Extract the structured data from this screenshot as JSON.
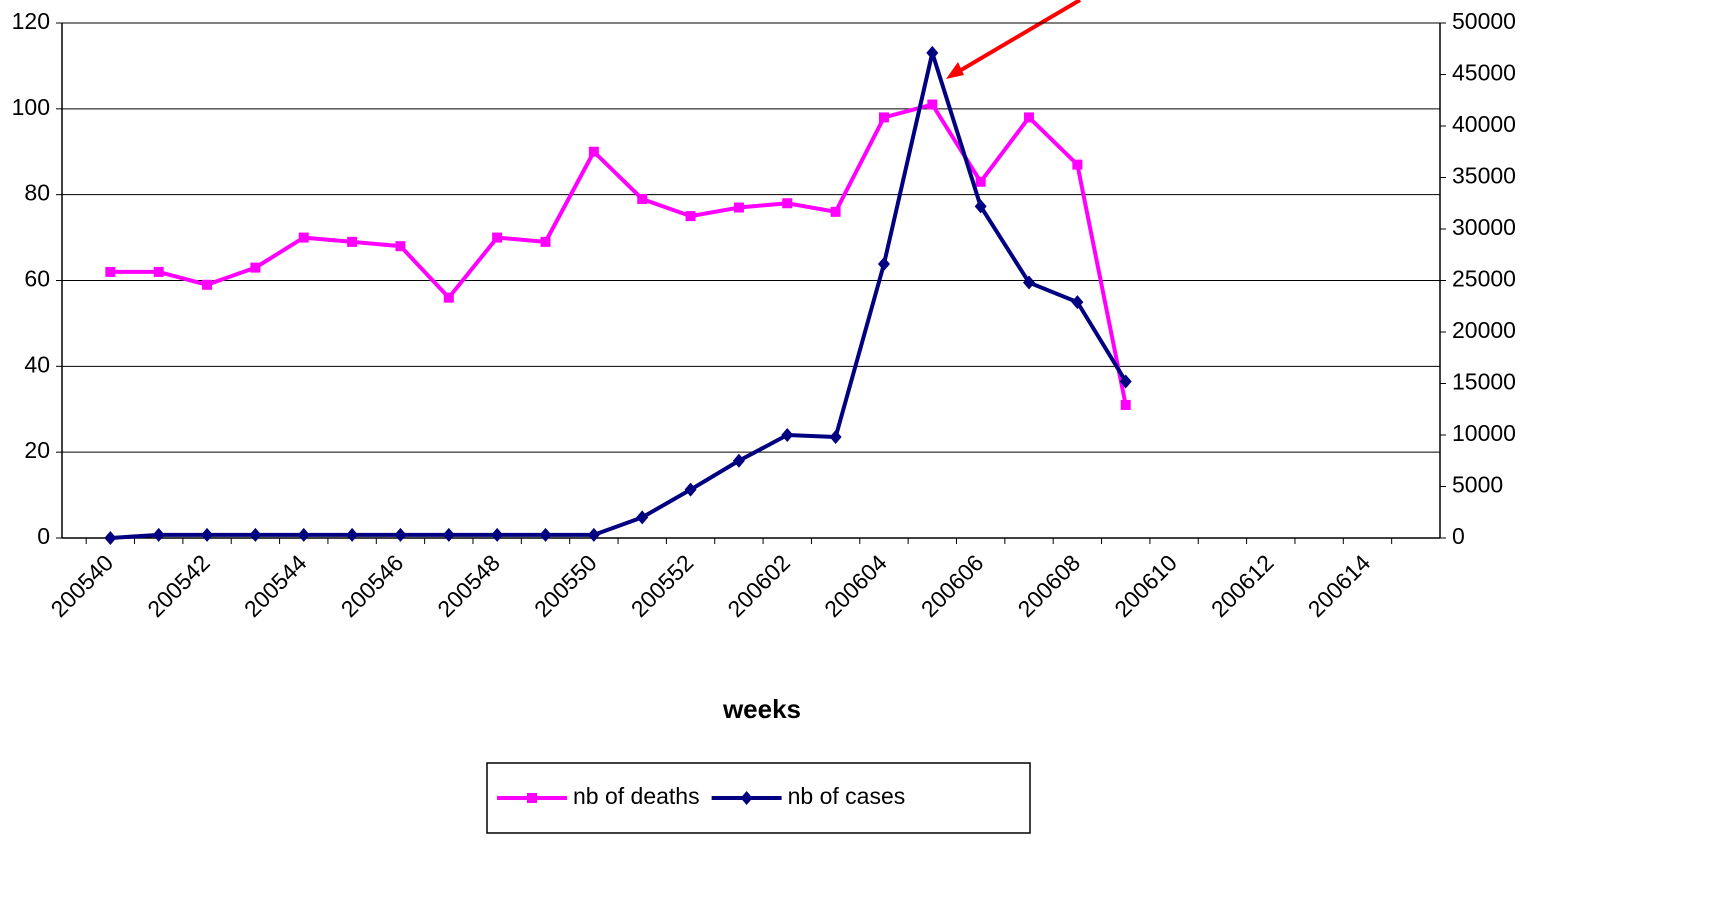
{
  "chart_data": {
    "type": "line",
    "x_label": "weeks",
    "categories": [
      "200540",
      null,
      "200542",
      null,
      "200544",
      null,
      "200546",
      null,
      "200548",
      null,
      "200550",
      null,
      "200552",
      null,
      "200602",
      null,
      "200604",
      null,
      "200606",
      null,
      "200608",
      null,
      "200610",
      null,
      "200612",
      null,
      "200614",
      null
    ],
    "series": [
      {
        "name": "nb of deaths",
        "color": "#ff00ff",
        "marker": "square",
        "values": [
          62,
          62,
          59,
          63,
          70,
          69,
          68,
          56,
          70,
          69,
          90,
          79,
          75,
          77,
          78,
          76,
          98,
          101,
          83,
          98,
          87,
          31,
          null,
          null,
          null,
          null,
          null,
          null
        ]
      },
      {
        "name": "nb of cases",
        "color": "#000080",
        "marker": "diamond",
        "axis": "y2",
        "values": [
          0,
          300,
          300,
          300,
          300,
          300,
          300,
          300,
          300,
          300,
          300,
          2000,
          4700,
          7500,
          10000,
          9800,
          26600,
          47100,
          32200,
          24800,
          22900,
          15200,
          null,
          null,
          null,
          null,
          null,
          null
        ]
      }
    ],
    "ylim": [
      0,
      120
    ],
    "yticks": [
      0,
      20,
      40,
      60,
      80,
      100,
      120
    ],
    "y2lim": [
      0,
      50000
    ],
    "y2ticks": [
      0,
      5000,
      10000,
      15000,
      20000,
      25000,
      30000,
      35000,
      40000,
      45000,
      50000
    ],
    "grid": true,
    "legend": "bottom"
  }
}
